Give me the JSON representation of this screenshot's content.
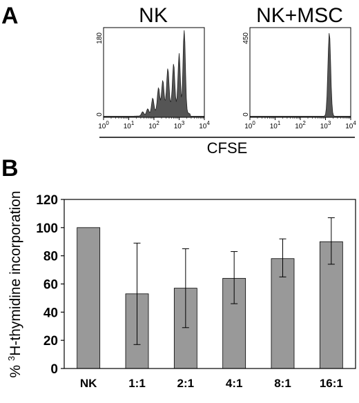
{
  "panels": {
    "a_letter": "A",
    "b_letter": "B"
  },
  "chart_data": [
    {
      "type": "area",
      "title": "NK",
      "ymax_label": "180",
      "ymin_label": "0",
      "x_tick_labels": [
        {
          "base": "10",
          "exp": "0"
        },
        {
          "base": "10",
          "exp": "1"
        },
        {
          "base": "10",
          "exp": "2"
        },
        {
          "base": "10",
          "exp": "3"
        },
        {
          "base": "10",
          "exp": "4"
        }
      ],
      "x_scale": "log",
      "xlim": [
        1,
        10000
      ],
      "ylim": [
        0,
        180
      ],
      "peaks_log10x": [
        1.55,
        1.75,
        1.95,
        2.18,
        2.35,
        2.55,
        2.78,
        3.0,
        3.2
      ],
      "peak_counts": [
        8,
        12,
        30,
        45,
        55,
        75,
        85,
        110,
        170
      ]
    },
    {
      "type": "area",
      "title": "NK+MSC",
      "ymax_label": "450",
      "ymin_label": "0",
      "x_tick_labels": [
        {
          "base": "10",
          "exp": "0"
        },
        {
          "base": "10",
          "exp": "1"
        },
        {
          "base": "10",
          "exp": "2"
        },
        {
          "base": "10",
          "exp": "3"
        },
        {
          "base": "10",
          "exp": "4"
        }
      ],
      "x_scale": "log",
      "xlim": [
        1,
        10000
      ],
      "ylim": [
        0,
        450
      ],
      "peaks_log10x": [
        3.15
      ],
      "peak_counts": [
        420
      ]
    },
    {
      "type": "bar",
      "xlabel_shared_histograms": "CFSE",
      "ylabel_prefix": "% ",
      "ylabel_sup": "3",
      "ylabel_rest": "H-thymidine incorporation",
      "categories": [
        "NK",
        "1:1",
        "2:1",
        "4:1",
        "8:1",
        "16:1"
      ],
      "values": [
        100,
        53,
        57,
        64,
        78,
        90
      ],
      "error_low": [
        100,
        17,
        29,
        46,
        65,
        74
      ],
      "error_high": [
        100,
        89,
        85,
        83,
        92,
        107
      ],
      "y_ticks": [
        "0",
        "20",
        "40",
        "60",
        "80",
        "100",
        "120"
      ],
      "ylim": [
        0,
        120
      ],
      "bar_color": "#999999"
    }
  ]
}
